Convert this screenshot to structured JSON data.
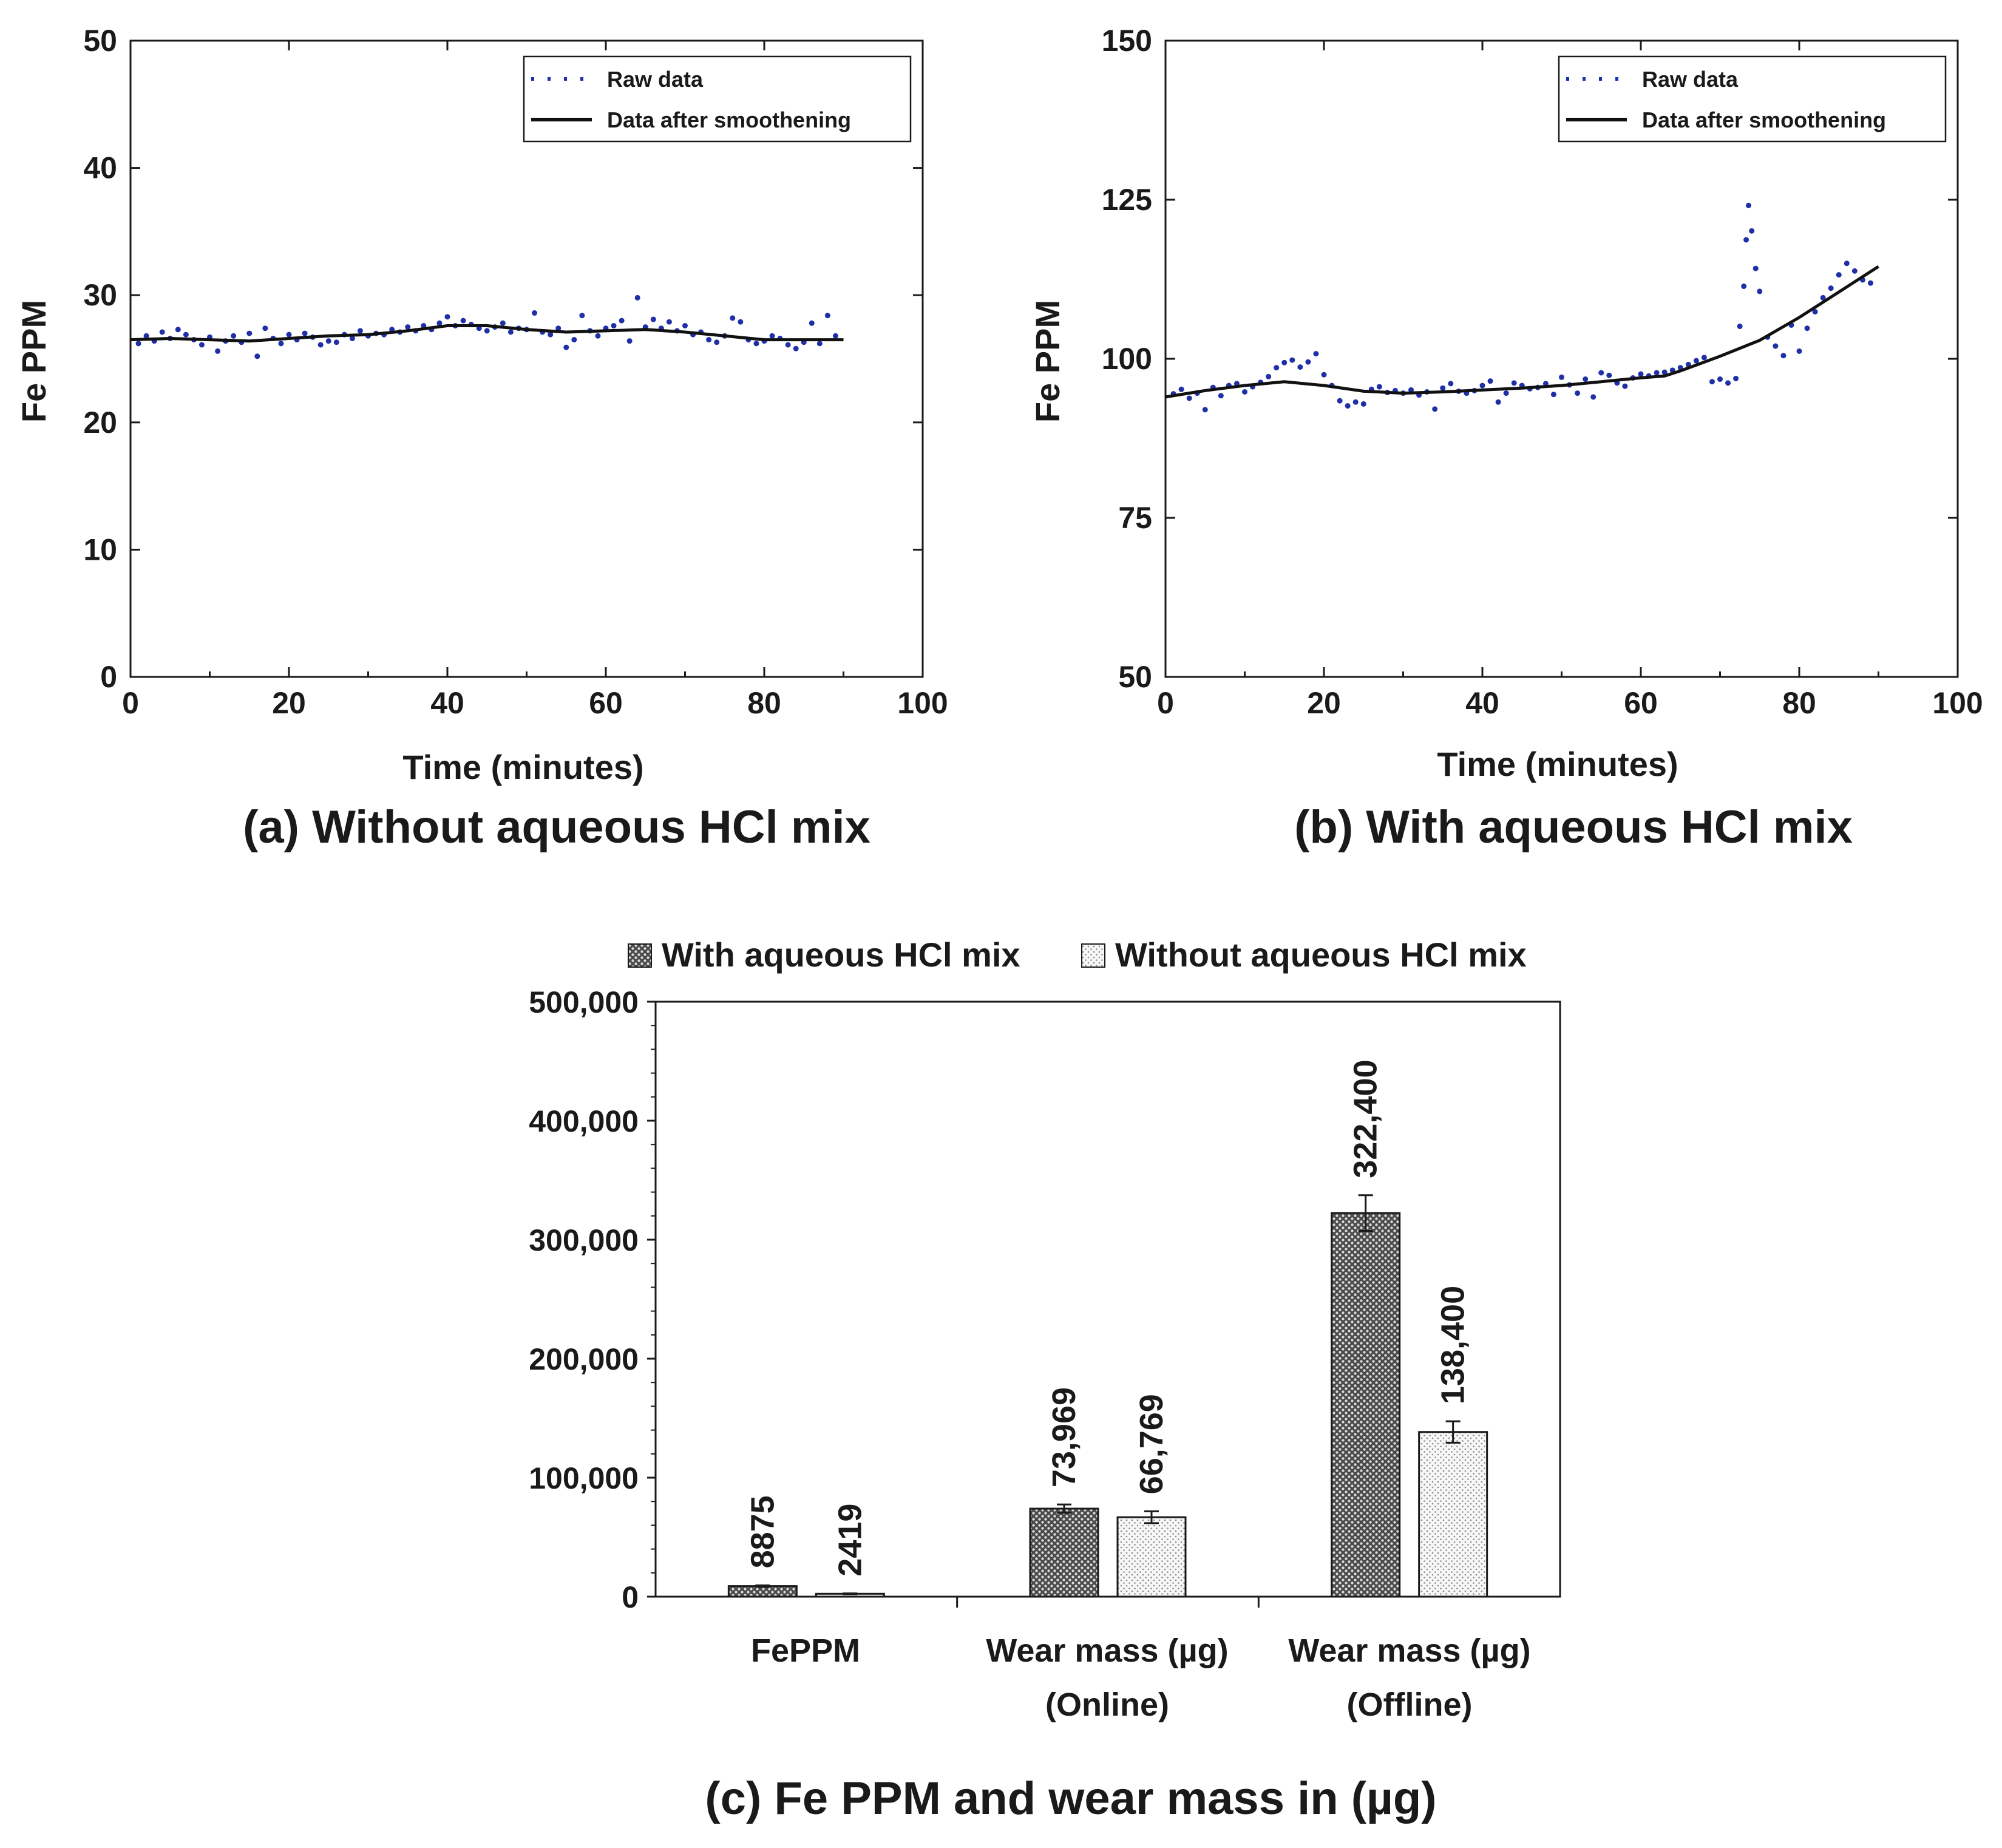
{
  "chart_data": [
    {
      "id": "a",
      "type": "line",
      "caption": "(a) Without aqueous HCl mix",
      "xlabel": "Time (minutes)",
      "ylabel": "Fe PPM",
      "xlim": [
        0,
        100
      ],
      "ylim": [
        0,
        50
      ],
      "xticks": [
        "0",
        "20",
        "40",
        "60",
        "80",
        "100"
      ],
      "yticks": [
        "0",
        "10",
        "20",
        "30",
        "40",
        "50"
      ],
      "xtick_values": [
        0,
        20,
        40,
        60,
        80,
        100
      ],
      "ytick_values": [
        0,
        10,
        20,
        30,
        40,
        50
      ],
      "legend": [
        "Raw data",
        "Data after smoothening"
      ],
      "series": [
        {
          "name": "Raw data",
          "x": [
            1,
            2,
            3,
            4,
            5,
            6,
            7,
            8,
            9,
            10,
            11,
            12,
            13,
            14,
            15,
            16,
            17,
            18,
            19,
            20,
            21,
            22,
            23,
            24,
            25,
            26,
            27,
            28,
            29,
            30,
            31,
            32,
            33,
            34,
            35,
            36,
            37,
            38,
            39,
            40,
            41,
            42,
            43,
            44,
            45,
            46,
            47,
            48,
            49,
            50,
            51,
            52,
            53,
            54,
            55,
            56,
            57,
            58,
            59,
            60,
            61,
            62,
            63,
            64,
            65,
            66,
            67,
            68,
            69,
            70,
            71,
            72,
            73,
            74,
            75,
            76,
            77,
            78,
            79,
            80,
            81,
            82,
            83,
            84,
            85,
            86,
            87,
            88,
            89
          ],
          "values": [
            26.2,
            26.8,
            26.4,
            27.1,
            26.6,
            27.3,
            26.9,
            26.5,
            26.1,
            26.7,
            25.6,
            26.4,
            26.8,
            26.3,
            27.0,
            25.2,
            27.4,
            26.6,
            26.2,
            26.9,
            26.5,
            27.0,
            26.7,
            26.1,
            26.4,
            26.3,
            26.9,
            26.6,
            27.2,
            26.8,
            27.0,
            26.9,
            27.3,
            27.1,
            27.5,
            27.2,
            27.6,
            27.3,
            27.8,
            28.3,
            27.6,
            28.0,
            27.7,
            27.4,
            27.2,
            27.5,
            27.8,
            27.1,
            27.4,
            27.3,
            28.6,
            27.1,
            26.9,
            27.4,
            25.9,
            26.5,
            28.4,
            27.2,
            26.8,
            27.4,
            27.6,
            28.0,
            26.4,
            29.8,
            27.5,
            28.1,
            27.4,
            27.9,
            27.2,
            27.6,
            26.9,
            27.1,
            26.5,
            26.3,
            26.8,
            28.2,
            27.9,
            26.5,
            26.2,
            26.4,
            26.8,
            26.6,
            26.1,
            25.8,
            26.3,
            27.8,
            26.2,
            28.4,
            26.8
          ]
        },
        {
          "name": "Data after smoothening",
          "x": [
            0,
            5,
            10,
            15,
            20,
            25,
            30,
            35,
            40,
            45,
            50,
            55,
            60,
            65,
            70,
            75,
            80,
            85,
            90
          ],
          "values": [
            26.5,
            26.6,
            26.5,
            26.4,
            26.6,
            26.8,
            26.9,
            27.2,
            27.6,
            27.6,
            27.3,
            27.1,
            27.2,
            27.3,
            27.1,
            26.8,
            26.5,
            26.5,
            26.5
          ]
        }
      ]
    },
    {
      "id": "b",
      "type": "line",
      "caption": "(b) With aqueous HCl mix",
      "xlabel": "Time (minutes)",
      "ylabel": "Fe PPM",
      "xlim": [
        0,
        100
      ],
      "ylim": [
        50,
        150
      ],
      "xticks": [
        "0",
        "20",
        "40",
        "60",
        "80",
        "100"
      ],
      "yticks": [
        "50",
        "75",
        "100",
        "125",
        "150"
      ],
      "xtick_values": [
        0,
        20,
        40,
        60,
        80,
        100
      ],
      "ytick_values": [
        50,
        75,
        100,
        125,
        150
      ],
      "legend": [
        "Raw data",
        "Data after smoothening"
      ],
      "series": [
        {
          "name": "Raw data",
          "x": [
            1,
            2,
            3,
            4,
            5,
            6,
            7,
            8,
            9,
            10,
            11,
            12,
            13,
            14,
            15,
            16,
            17,
            18,
            19,
            20,
            21,
            22,
            23,
            24,
            25,
            26,
            27,
            28,
            29,
            30,
            31,
            32,
            33,
            34,
            35,
            36,
            37,
            38,
            39,
            40,
            41,
            42,
            43,
            44,
            45,
            46,
            47,
            48,
            49,
            50,
            51,
            52,
            53,
            54,
            55,
            56,
            57,
            58,
            59,
            60,
            61,
            62,
            63,
            64,
            65,
            66,
            67,
            68,
            69,
            70,
            71,
            72,
            72.5,
            73,
            73.3,
            73.6,
            74,
            74.5,
            75,
            76,
            77,
            78,
            79,
            80,
            81,
            82,
            83,
            84,
            85,
            86,
            87,
            88,
            89
          ],
          "values": [
            94.5,
            95.2,
            93.8,
            94.6,
            92.0,
            95.5,
            94.2,
            95.8,
            96.1,
            94.8,
            95.6,
            96.3,
            97.2,
            98.6,
            99.4,
            99.8,
            98.7,
            99.5,
            100.8,
            97.5,
            95.8,
            93.4,
            92.6,
            93.2,
            92.9,
            95.2,
            95.6,
            94.7,
            95.0,
            94.6,
            95.1,
            94.3,
            94.8,
            92.1,
            95.4,
            96.1,
            94.9,
            94.6,
            95.0,
            95.8,
            96.5,
            93.2,
            94.6,
            96.2,
            95.8,
            95.3,
            95.5,
            96.1,
            94.4,
            97.1,
            95.9,
            94.6,
            96.8,
            94.0,
            97.8,
            97.4,
            96.2,
            95.7,
            97.0,
            97.6,
            97.3,
            97.8,
            97.9,
            98.2,
            98.6,
            99.1,
            99.7,
            100.2,
            96.4,
            96.8,
            96.2,
            96.9,
            105.1,
            111.4,
            118.7,
            124.1,
            120.1,
            114.2,
            110.6,
            103.4,
            102.0,
            100.5,
            105.3,
            101.2,
            104.8,
            107.4,
            109.6,
            111.1,
            113.2,
            115.0,
            113.8,
            112.4,
            111.9
          ]
        },
        {
          "name": "Data after smoothening",
          "x": [
            0,
            5,
            10,
            15,
            20,
            25,
            30,
            35,
            40,
            45,
            50,
            55,
            60,
            63,
            65,
            70,
            75,
            80,
            85,
            90
          ],
          "values": [
            94.0,
            95.0,
            95.8,
            96.4,
            95.8,
            94.9,
            94.6,
            94.8,
            95.1,
            95.4,
            95.8,
            96.4,
            97.0,
            97.3,
            98.1,
            100.4,
            102.9,
            106.5,
            110.5,
            114.5
          ]
        }
      ]
    },
    {
      "id": "c",
      "type": "bar",
      "caption": "(c) Fe PPM and wear mass in (µg)",
      "ylim": [
        0,
        500000
      ],
      "yticks": [
        "0",
        "100,000",
        "200,000",
        "300,000",
        "400,000",
        "500,000"
      ],
      "ytick_values": [
        0,
        100000,
        200000,
        300000,
        400000,
        500000
      ],
      "categories": [
        {
          "line1": "FePPM",
          "line2": ""
        },
        {
          "line1": "Wear mass (µg)",
          "line2": "(Online)"
        },
        {
          "line1": "Wear mass (µg)",
          "line2": "(Offline)"
        }
      ],
      "legend": [
        "With aqueous HCl mix",
        "Without aqueous HCl mix"
      ],
      "series": [
        {
          "name": "With aqueous HCl mix",
          "values": [
            8875,
            73969,
            322400
          ],
          "labels": [
            "8875",
            "73,969",
            "322,400"
          ],
          "errors": [
            600,
            3500,
            15000
          ]
        },
        {
          "name": "Without aqueous HCl mix",
          "values": [
            2419,
            66769,
            138400
          ],
          "labels": [
            "2419",
            "66,769",
            "138,400"
          ],
          "errors": [
            300,
            5000,
            9000
          ]
        }
      ]
    }
  ]
}
